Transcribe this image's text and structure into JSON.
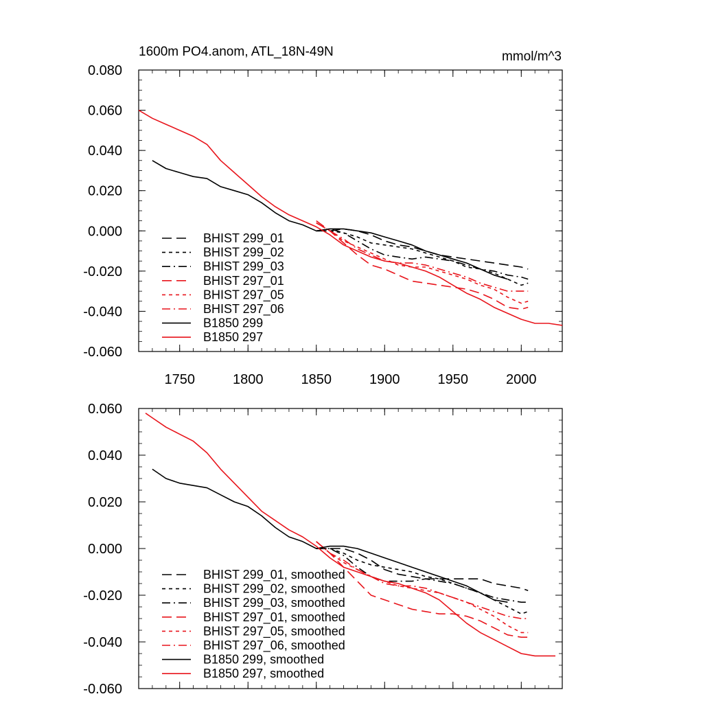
{
  "figure": {
    "title_left": "1600m PO4.anom, ATL_18N-49N",
    "title_right": "mmol/m^3"
  },
  "colors": {
    "black": "#000000",
    "red": "#e8141b"
  },
  "chart_data": [
    {
      "type": "line",
      "xlim": [
        1720,
        2030
      ],
      "ylim": [
        -0.06,
        0.08
      ],
      "xticks": [
        1750,
        1800,
        1850,
        1900,
        1950,
        2000
      ],
      "xtick_labels": [
        "1750",
        "1800",
        "1850",
        "1900",
        "1950",
        "2000"
      ],
      "yticks": [
        0.08,
        0.06,
        0.04,
        0.02,
        0.0,
        -0.02,
        -0.04,
        -0.06
      ],
      "ytick_labels": [
        "0.080",
        "0.060",
        "0.040",
        "0.020",
        "0.000",
        "-0.020",
        "-0.040",
        "-0.060"
      ],
      "legend_position": "bottom-left",
      "series": [
        {
          "name": "BHIST 299_01",
          "color": "#000000",
          "dash": "long",
          "x": [
            1850,
            1860,
            1870,
            1880,
            1890,
            1900,
            1910,
            1920,
            1930,
            1940,
            1950,
            1960,
            1970,
            1980,
            1990,
            2000,
            2005
          ],
          "y": [
            0.0,
            0.0,
            0.001,
            0.0,
            -0.002,
            -0.005,
            -0.007,
            -0.008,
            -0.01,
            -0.012,
            -0.013,
            -0.014,
            -0.015,
            -0.016,
            -0.017,
            -0.018,
            -0.019
          ]
        },
        {
          "name": "BHIST 299_02",
          "color": "#000000",
          "dash": "short",
          "x": [
            1850,
            1860,
            1870,
            1880,
            1890,
            1900,
            1910,
            1920,
            1930,
            1940,
            1950,
            1960,
            1970,
            1980,
            1990,
            2000,
            2005
          ],
          "y": [
            0.0,
            0.0,
            -0.001,
            -0.003,
            -0.006,
            -0.007,
            -0.008,
            -0.009,
            -0.011,
            -0.013,
            -0.015,
            -0.018,
            -0.019,
            -0.021,
            -0.024,
            -0.027,
            -0.026
          ]
        },
        {
          "name": "BHIST 299_03",
          "color": "#000000",
          "dash": "dashdot",
          "x": [
            1850,
            1860,
            1870,
            1880,
            1890,
            1900,
            1910,
            1920,
            1930,
            1940,
            1950,
            1960,
            1970,
            1980,
            1990,
            2000,
            2005
          ],
          "y": [
            0.0,
            0.001,
            -0.001,
            -0.005,
            -0.009,
            -0.012,
            -0.013,
            -0.014,
            -0.013,
            -0.014,
            -0.015,
            -0.017,
            -0.019,
            -0.02,
            -0.022,
            -0.023,
            -0.024
          ]
        },
        {
          "name": "BHIST 297_01",
          "color": "#e8141b",
          "dash": "long",
          "x": [
            1850,
            1860,
            1870,
            1880,
            1890,
            1900,
            1910,
            1920,
            1930,
            1940,
            1950,
            1960,
            1970,
            1980,
            1990,
            2000,
            2005
          ],
          "y": [
            0.005,
            0.0,
            -0.006,
            -0.012,
            -0.017,
            -0.019,
            -0.022,
            -0.025,
            -0.026,
            -0.027,
            -0.028,
            -0.029,
            -0.031,
            -0.034,
            -0.038,
            -0.039,
            -0.038
          ]
        },
        {
          "name": "BHIST 297_05",
          "color": "#e8141b",
          "dash": "short",
          "x": [
            1850,
            1860,
            1870,
            1880,
            1890,
            1900,
            1910,
            1920,
            1930,
            1940,
            1950,
            1960,
            1970,
            1980,
            1990,
            2000,
            2005
          ],
          "y": [
            0.004,
            0.0,
            -0.005,
            -0.008,
            -0.011,
            -0.014,
            -0.017,
            -0.018,
            -0.018,
            -0.02,
            -0.022,
            -0.024,
            -0.027,
            -0.029,
            -0.033,
            -0.036,
            -0.035
          ]
        },
        {
          "name": "BHIST 297_06",
          "color": "#e8141b",
          "dash": "dashdot",
          "x": [
            1850,
            1860,
            1870,
            1880,
            1890,
            1900,
            1910,
            1920,
            1930,
            1940,
            1950,
            1960,
            1970,
            1980,
            1990,
            2000,
            2005
          ],
          "y": [
            0.004,
            0.0,
            -0.004,
            -0.009,
            -0.012,
            -0.015,
            -0.016,
            -0.016,
            -0.017,
            -0.019,
            -0.021,
            -0.023,
            -0.026,
            -0.028,
            -0.03,
            -0.03,
            -0.03
          ]
        },
        {
          "name": "B1850 299",
          "color": "#000000",
          "dash": "solid",
          "x": [
            1730,
            1740,
            1750,
            1760,
            1770,
            1780,
            1790,
            1800,
            1810,
            1820,
            1830,
            1840,
            1850,
            1860,
            1870,
            1880,
            1890,
            1900,
            1910,
            1920,
            1930,
            1940,
            1950,
            1960,
            1970,
            1980,
            1990
          ],
          "y": [
            0.035,
            0.031,
            0.029,
            0.027,
            0.026,
            0.022,
            0.02,
            0.018,
            0.014,
            0.009,
            0.005,
            0.003,
            0.0,
            0.001,
            0.001,
            0.0,
            -0.001,
            -0.003,
            -0.005,
            -0.007,
            -0.01,
            -0.012,
            -0.014,
            -0.016,
            -0.019,
            -0.022,
            -0.024
          ]
        },
        {
          "name": "B1850 297",
          "color": "#e8141b",
          "dash": "solid",
          "x": [
            1720,
            1730,
            1740,
            1750,
            1760,
            1770,
            1780,
            1790,
            1800,
            1810,
            1820,
            1830,
            1840,
            1850,
            1860,
            1870,
            1880,
            1890,
            1900,
            1910,
            1920,
            1930,
            1940,
            1950,
            1960,
            1970,
            1980,
            1990,
            2000,
            2010,
            2020,
            2030
          ],
          "y": [
            0.06,
            0.056,
            0.053,
            0.05,
            0.047,
            0.043,
            0.035,
            0.029,
            0.023,
            0.017,
            0.012,
            0.008,
            0.005,
            0.002,
            -0.002,
            -0.007,
            -0.01,
            -0.013,
            -0.015,
            -0.016,
            -0.018,
            -0.02,
            -0.023,
            -0.027,
            -0.031,
            -0.034,
            -0.038,
            -0.041,
            -0.044,
            -0.046,
            -0.046,
            -0.047
          ]
        }
      ]
    },
    {
      "type": "line",
      "xlim": [
        1720,
        2030
      ],
      "ylim": [
        -0.06,
        0.06
      ],
      "xticks": [
        1750,
        1800,
        1850,
        1900,
        1950,
        2000
      ],
      "xtick_labels": [],
      "yticks": [
        0.06,
        0.04,
        0.02,
        0.0,
        -0.02,
        -0.04,
        -0.06
      ],
      "ytick_labels": [
        "0.060",
        "0.040",
        "0.020",
        "0.000",
        "-0.020",
        "-0.040",
        "-0.060"
      ],
      "legend_position": "bottom-left",
      "series": [
        {
          "name": "BHIST 299_01, smoothed",
          "color": "#000000",
          "dash": "long",
          "x": [
            1850,
            1860,
            1870,
            1880,
            1890,
            1900,
            1910,
            1920,
            1930,
            1940,
            1950,
            1960,
            1970,
            1980,
            1990,
            2000,
            2005
          ],
          "y": [
            0.0,
            0.0,
            0.0,
            -0.002,
            -0.005,
            -0.009,
            -0.011,
            -0.012,
            -0.013,
            -0.013,
            -0.013,
            -0.013,
            -0.013,
            -0.015,
            -0.016,
            -0.017,
            -0.018
          ]
        },
        {
          "name": "BHIST 299_02, smoothed",
          "color": "#000000",
          "dash": "short",
          "x": [
            1850,
            1860,
            1870,
            1880,
            1890,
            1900,
            1910,
            1920,
            1930,
            1940,
            1950,
            1960,
            1970,
            1980,
            1990,
            2000,
            2005
          ],
          "y": [
            0.0,
            0.0,
            -0.002,
            -0.005,
            -0.007,
            -0.008,
            -0.009,
            -0.01,
            -0.012,
            -0.013,
            -0.015,
            -0.017,
            -0.019,
            -0.022,
            -0.025,
            -0.028,
            -0.027
          ]
        },
        {
          "name": "BHIST 299_03, smoothed",
          "color": "#000000",
          "dash": "dashdot",
          "x": [
            1850,
            1860,
            1870,
            1880,
            1890,
            1900,
            1910,
            1920,
            1930,
            1940,
            1950,
            1960,
            1970,
            1980,
            1990,
            2000,
            2005
          ],
          "y": [
            0.0,
            0.0,
            -0.003,
            -0.008,
            -0.012,
            -0.014,
            -0.014,
            -0.014,
            -0.013,
            -0.014,
            -0.015,
            -0.017,
            -0.019,
            -0.021,
            -0.022,
            -0.023,
            -0.023
          ]
        },
        {
          "name": "BHIST 297_01, smoothed",
          "color": "#e8141b",
          "dash": "long",
          "x": [
            1850,
            1860,
            1870,
            1880,
            1890,
            1900,
            1910,
            1920,
            1930,
            1940,
            1950,
            1960,
            1970,
            1980,
            1990,
            2000,
            2005
          ],
          "y": [
            0.003,
            -0.002,
            -0.008,
            -0.014,
            -0.02,
            -0.022,
            -0.024,
            -0.026,
            -0.027,
            -0.028,
            -0.028,
            -0.029,
            -0.031,
            -0.034,
            -0.037,
            -0.038,
            -0.038
          ]
        },
        {
          "name": "BHIST 297_05, smoothed",
          "color": "#e8141b",
          "dash": "short",
          "x": [
            1850,
            1860,
            1870,
            1880,
            1890,
            1900,
            1910,
            1920,
            1930,
            1940,
            1950,
            1960,
            1970,
            1980,
            1990,
            2000,
            2005
          ],
          "y": [
            0.003,
            -0.002,
            -0.006,
            -0.009,
            -0.012,
            -0.014,
            -0.016,
            -0.017,
            -0.018,
            -0.019,
            -0.021,
            -0.023,
            -0.026,
            -0.029,
            -0.033,
            -0.036,
            -0.036
          ]
        },
        {
          "name": "BHIST 297_06, smoothed",
          "color": "#e8141b",
          "dash": "dashdot",
          "x": [
            1850,
            1860,
            1870,
            1880,
            1890,
            1900,
            1910,
            1920,
            1930,
            1940,
            1950,
            1960,
            1970,
            1980,
            1990,
            2000,
            2005
          ],
          "y": [
            0.003,
            -0.002,
            -0.005,
            -0.009,
            -0.012,
            -0.015,
            -0.016,
            -0.016,
            -0.017,
            -0.019,
            -0.021,
            -0.023,
            -0.025,
            -0.027,
            -0.029,
            -0.03,
            -0.03
          ]
        },
        {
          "name": "B1850 299, smoothed",
          "color": "#000000",
          "dash": "solid",
          "x": [
            1730,
            1740,
            1750,
            1760,
            1770,
            1780,
            1790,
            1800,
            1810,
            1820,
            1830,
            1840,
            1850,
            1860,
            1870,
            1880,
            1890,
            1900,
            1910,
            1920,
            1930,
            1940,
            1950,
            1960,
            1970,
            1980,
            1990
          ],
          "y": [
            0.034,
            0.03,
            0.028,
            0.027,
            0.026,
            0.023,
            0.02,
            0.018,
            0.014,
            0.009,
            0.005,
            0.003,
            0.0,
            0.001,
            0.001,
            0.0,
            -0.002,
            -0.004,
            -0.006,
            -0.008,
            -0.01,
            -0.012,
            -0.014,
            -0.016,
            -0.019,
            -0.022,
            -0.023
          ]
        },
        {
          "name": "B1850 297, smoothed",
          "color": "#e8141b",
          "dash": "solid",
          "x": [
            1725,
            1730,
            1740,
            1750,
            1760,
            1770,
            1780,
            1790,
            1800,
            1810,
            1820,
            1830,
            1840,
            1850,
            1860,
            1870,
            1880,
            1890,
            1900,
            1910,
            1920,
            1930,
            1940,
            1950,
            1960,
            1970,
            1980,
            1990,
            2000,
            2010,
            2020,
            2025
          ],
          "y": [
            0.058,
            0.056,
            0.052,
            0.049,
            0.046,
            0.041,
            0.034,
            0.028,
            0.022,
            0.016,
            0.012,
            0.008,
            0.005,
            0.001,
            -0.004,
            -0.008,
            -0.01,
            -0.012,
            -0.014,
            -0.015,
            -0.017,
            -0.019,
            -0.022,
            -0.027,
            -0.032,
            -0.036,
            -0.039,
            -0.042,
            -0.045,
            -0.046,
            -0.046,
            -0.046
          ]
        }
      ]
    }
  ]
}
